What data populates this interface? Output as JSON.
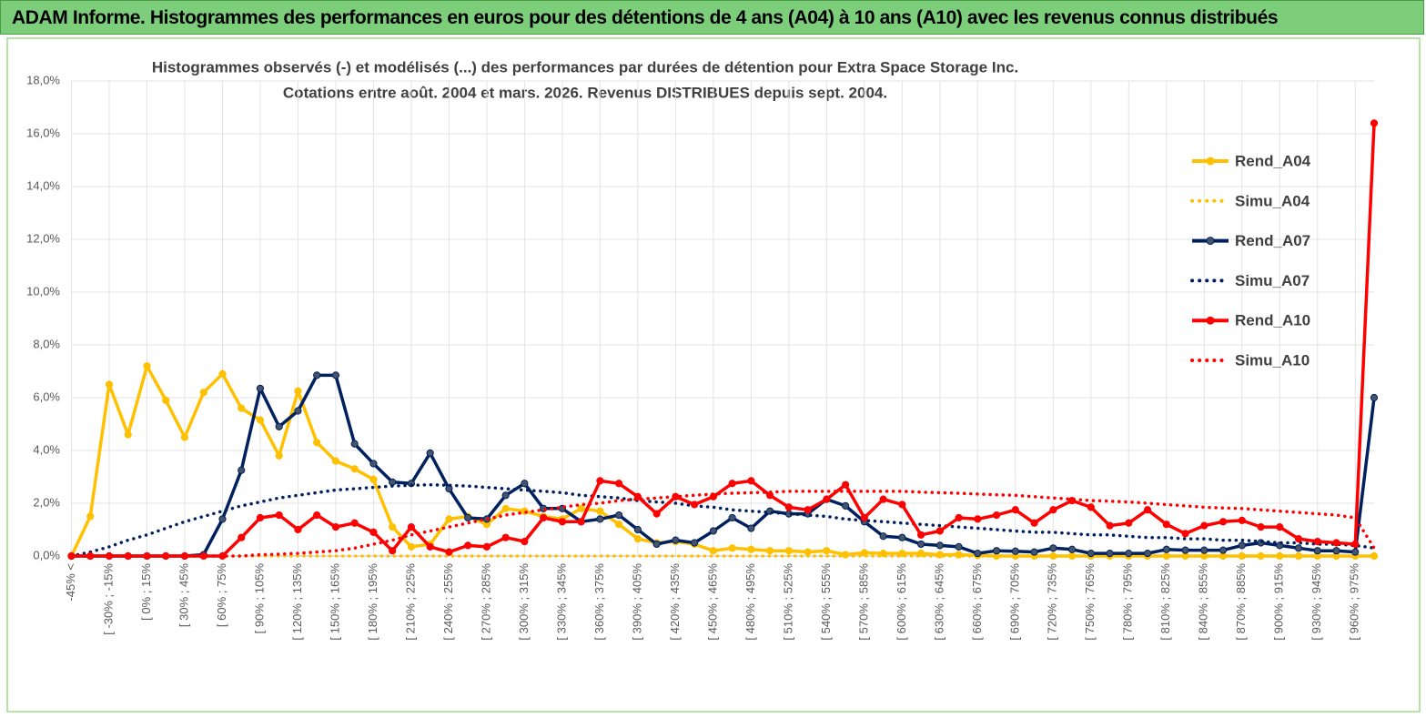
{
  "header": {
    "title": "ADAM Informe. Histogrammes des performances en euros pour des détentions de 4 ans (A04) à 10 ans (A10) avec les revenus connus distribués"
  },
  "chart_data": {
    "type": "line",
    "title": "Histogrammes observés (-) et modélisés (...) des performances par durées de détention pour Extra Space Storage Inc.",
    "subtitle": "Cotations entre août. 2004 et mars. 2026. Revenus DISTRIBUES depuis sept. 2004.",
    "categories": [
      "-45% <",
      null,
      "[ -30% ; -15%",
      null,
      "[ 0% ; 15%",
      null,
      "[ 30% ; 45%",
      null,
      "[ 60% ; 75%",
      null,
      "[ 90% ; 105%",
      null,
      "[ 120% ; 135%",
      null,
      "[ 150% ; 165%",
      null,
      "[ 180% ; 195%",
      null,
      "[ 210% ; 225%",
      null,
      "[ 240% ; 255%",
      null,
      "[ 270% ; 285%",
      null,
      "[ 300% ; 315%",
      null,
      "[ 330% ; 345%",
      null,
      "[ 360% ; 375%",
      null,
      "[ 390% ; 405%",
      null,
      "[ 420% ; 435%",
      null,
      "[ 450% ; 465%",
      null,
      "[ 480% ; 495%",
      null,
      "[ 510% ; 525%",
      null,
      "[ 540% ; 555%",
      null,
      "[ 570% ; 585%",
      null,
      "[ 600% ; 615%",
      null,
      "[ 630% ; 645%",
      null,
      "[ 660% ; 675%",
      null,
      "[ 690% ; 705%",
      null,
      "[ 720% ; 735%",
      null,
      "[ 750% ; 765%",
      null,
      "[ 780% ; 795%",
      null,
      "[ 810% ; 825%",
      null,
      "[ 840% ; 855%",
      null,
      "[ 870% ; 885%",
      null,
      "[ 900% ; 915%",
      null,
      "[ 930% ; 945%",
      null,
      "[ 960% ; 975%",
      null
    ],
    "ylim": [
      0,
      18
    ],
    "yticks": [
      {
        "value": 0,
        "label": "0,0%"
      },
      {
        "value": 2,
        "label": "2,0%"
      },
      {
        "value": 4,
        "label": "4,0%"
      },
      {
        "value": 6,
        "label": "6,0%"
      },
      {
        "value": 8,
        "label": "8,0%"
      },
      {
        "value": 10,
        "label": "10,0%"
      },
      {
        "value": 12,
        "label": "12,0%"
      },
      {
        "value": 14,
        "label": "14,0%"
      },
      {
        "value": 16,
        "label": "16,0%"
      },
      {
        "value": 18,
        "label": "18,0%"
      }
    ],
    "grid": true,
    "legend": "right",
    "series": [
      {
        "name": "Rend_A04",
        "color": "#ffc000",
        "style": "solid",
        "markers": true,
        "values": [
          0,
          1.5,
          6.5,
          4.6,
          7.2,
          5.9,
          4.5,
          6.2,
          6.9,
          5.6,
          5.15,
          3.8,
          6.25,
          4.3,
          3.6,
          3.3,
          2.9,
          1.1,
          0.35,
          0.45,
          1.4,
          1.5,
          1.2,
          1.8,
          1.7,
          1.5,
          1.4,
          1.8,
          1.7,
          1.2,
          0.65,
          0.5,
          0.55,
          0.45,
          0.2,
          0.3,
          0.25,
          0.2,
          0.2,
          0.15,
          0.2,
          0.05,
          0.12,
          0.1,
          0.1,
          0.1,
          0.05,
          0.05,
          0.02,
          0,
          0,
          0,
          0,
          0,
          0,
          0,
          0,
          0,
          0,
          0,
          0,
          0,
          0,
          0,
          0,
          0,
          0,
          0,
          0,
          0
        ]
      },
      {
        "name": "Simu_A04",
        "color": "#ffc000",
        "style": "dotted",
        "markers": false,
        "values": [
          0,
          0,
          0,
          0,
          0,
          0,
          0,
          0,
          0,
          0,
          0,
          0,
          0,
          0,
          0,
          0,
          0,
          0,
          0,
          0,
          0,
          0,
          0,
          0,
          0,
          0,
          0,
          0,
          0,
          0,
          0,
          0,
          0,
          0,
          0,
          0,
          0,
          0,
          0,
          0,
          0,
          0,
          0,
          0,
          0,
          0,
          0,
          0,
          0,
          0,
          0,
          0,
          0,
          0,
          0,
          0,
          0,
          0,
          0,
          0,
          0,
          0,
          0,
          0,
          0,
          0,
          0,
          0,
          0,
          0
        ]
      },
      {
        "name": "Rend_A07",
        "color": "#002060",
        "style": "solid",
        "markers": true,
        "values": [
          0,
          0,
          0,
          0,
          0,
          0,
          0,
          0.05,
          1.4,
          3.25,
          6.35,
          4.9,
          5.5,
          6.85,
          6.85,
          4.25,
          3.5,
          2.8,
          2.75,
          3.9,
          2.55,
          1.45,
          1.4,
          2.3,
          2.75,
          1.8,
          1.8,
          1.3,
          1.4,
          1.55,
          1.0,
          0.45,
          0.6,
          0.5,
          0.95,
          1.45,
          1.05,
          1.7,
          1.6,
          1.6,
          2.15,
          1.9,
          1.3,
          0.75,
          0.7,
          0.45,
          0.4,
          0.35,
          0.1,
          0.2,
          0.18,
          0.15,
          0.3,
          0.25,
          0.1,
          0.1,
          0.1,
          0.1,
          0.25,
          0.22,
          0.22,
          0.22,
          0.4,
          0.5,
          0.4,
          0.3,
          0.2,
          0.2,
          0.15,
          6.0
        ]
      },
      {
        "name": "Simu_A07",
        "color": "#002060",
        "style": "dotted",
        "markers": false,
        "values": [
          0,
          0.15,
          0.35,
          0.6,
          0.8,
          1.05,
          1.3,
          1.5,
          1.7,
          1.9,
          2.05,
          2.2,
          2.3,
          2.4,
          2.5,
          2.55,
          2.6,
          2.65,
          2.68,
          2.7,
          2.68,
          2.65,
          2.6,
          2.55,
          2.5,
          2.45,
          2.4,
          2.3,
          2.25,
          2.2,
          2.1,
          2.05,
          2.0,
          1.9,
          1.85,
          1.75,
          1.7,
          1.65,
          1.6,
          1.55,
          1.5,
          1.4,
          1.35,
          1.3,
          1.25,
          1.2,
          1.15,
          1.1,
          1.05,
          1.0,
          0.95,
          0.9,
          0.9,
          0.85,
          0.8,
          0.8,
          0.75,
          0.7,
          0.7,
          0.65,
          0.65,
          0.6,
          0.6,
          0.55,
          0.5,
          0.5,
          0.45,
          0.45,
          0.4,
          0.3
        ]
      },
      {
        "name": "Rend_A10",
        "color": "#ff0000",
        "style": "solid",
        "markers": true,
        "values": [
          0,
          0,
          0,
          0,
          0,
          0,
          0,
          0,
          0,
          0.7,
          1.45,
          1.55,
          1.0,
          1.55,
          1.1,
          1.25,
          0.9,
          0.2,
          1.1,
          0.35,
          0.15,
          0.4,
          0.35,
          0.7,
          0.55,
          1.45,
          1.3,
          1.3,
          2.85,
          2.75,
          2.25,
          1.6,
          2.25,
          1.95,
          2.25,
          2.75,
          2.85,
          2.3,
          1.85,
          1.75,
          2.15,
          2.7,
          1.45,
          2.15,
          1.95,
          0.8,
          0.95,
          1.45,
          1.4,
          1.55,
          1.75,
          1.25,
          1.75,
          2.1,
          1.85,
          1.15,
          1.25,
          1.75,
          1.2,
          0.85,
          1.15,
          1.3,
          1.35,
          1.1,
          1.1,
          0.65,
          0.55,
          0.5,
          0.45,
          16.4
        ]
      },
      {
        "name": "Simu_A10",
        "color": "#ff0000",
        "style": "dotted",
        "markers": false,
        "values": [
          0,
          0,
          0,
          0,
          0,
          0,
          0,
          0,
          0,
          0,
          0.05,
          0.07,
          0.1,
          0.15,
          0.2,
          0.3,
          0.45,
          0.6,
          0.8,
          0.95,
          1.1,
          1.25,
          1.4,
          1.55,
          1.65,
          1.75,
          1.85,
          1.95,
          2.0,
          2.1,
          2.15,
          2.2,
          2.25,
          2.3,
          2.35,
          2.38,
          2.4,
          2.42,
          2.45,
          2.45,
          2.45,
          2.45,
          2.45,
          2.45,
          2.45,
          2.42,
          2.4,
          2.38,
          2.35,
          2.32,
          2.3,
          2.25,
          2.2,
          2.15,
          2.1,
          2.08,
          2.05,
          2.0,
          1.95,
          1.9,
          1.85,
          1.82,
          1.8,
          1.75,
          1.7,
          1.65,
          1.6,
          1.55,
          1.45,
          0.3
        ]
      }
    ]
  }
}
